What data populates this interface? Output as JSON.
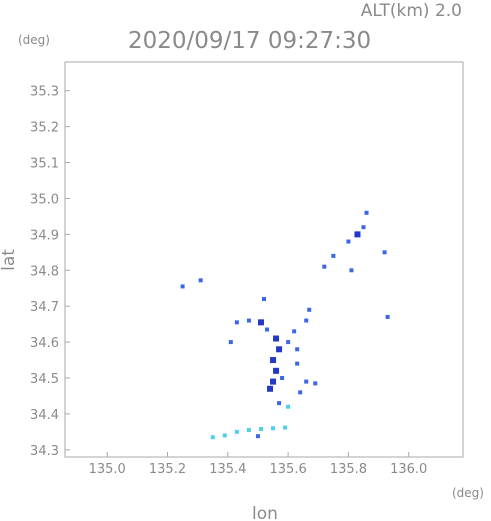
{
  "header": {
    "altitude": "ALT(km) 2.0",
    "timestamp": "2020/09/17 09:27:30"
  },
  "axes": {
    "x_label": "lon",
    "y_label": "lat",
    "x_unit": "(deg)",
    "y_unit": "(deg)",
    "x_range": [
      134.86,
      136.18
    ],
    "y_range": [
      34.28,
      35.38
    ],
    "x_ticks": [
      "135.0",
      "135.2",
      "135.4",
      "135.6",
      "135.8",
      "136.0"
    ],
    "y_ticks": [
      "35.3",
      "35.2",
      "35.1",
      "35.0",
      "34.9",
      "34.8",
      "34.7",
      "34.6",
      "34.5",
      "34.4",
      "34.3"
    ]
  },
  "chart_data": {
    "type": "scatter",
    "xlabel": "lon",
    "ylabel": "lat",
    "xlim": [
      134.86,
      136.18
    ],
    "ylim": [
      34.28,
      35.38
    ],
    "grid": false,
    "colors": {
      "weak": "#4fd0e6",
      "moderate": "#3a66e8",
      "strong": "#2438c8"
    },
    "echoes": [
      {
        "lon": 135.25,
        "lat": 34.755,
        "level": "moderate"
      },
      {
        "lon": 135.31,
        "lat": 34.772,
        "level": "moderate"
      },
      {
        "lon": 135.43,
        "lat": 34.655,
        "level": "moderate"
      },
      {
        "lon": 135.47,
        "lat": 34.66,
        "level": "moderate"
      },
      {
        "lon": 135.51,
        "lat": 34.655,
        "level": "strong"
      },
      {
        "lon": 135.53,
        "lat": 34.635,
        "level": "moderate"
      },
      {
        "lon": 135.56,
        "lat": 34.61,
        "level": "strong"
      },
      {
        "lon": 135.57,
        "lat": 34.58,
        "level": "strong"
      },
      {
        "lon": 135.55,
        "lat": 34.55,
        "level": "strong"
      },
      {
        "lon": 135.56,
        "lat": 34.52,
        "level": "strong"
      },
      {
        "lon": 135.55,
        "lat": 34.49,
        "level": "strong"
      },
      {
        "lon": 135.58,
        "lat": 34.5,
        "level": "moderate"
      },
      {
        "lon": 135.54,
        "lat": 34.47,
        "level": "strong"
      },
      {
        "lon": 135.6,
        "lat": 34.6,
        "level": "moderate"
      },
      {
        "lon": 135.62,
        "lat": 34.63,
        "level": "moderate"
      },
      {
        "lon": 135.63,
        "lat": 34.58,
        "level": "moderate"
      },
      {
        "lon": 135.66,
        "lat": 34.66,
        "level": "moderate"
      },
      {
        "lon": 135.67,
        "lat": 34.69,
        "level": "moderate"
      },
      {
        "lon": 135.63,
        "lat": 34.54,
        "level": "moderate"
      },
      {
        "lon": 135.66,
        "lat": 34.49,
        "level": "moderate"
      },
      {
        "lon": 135.69,
        "lat": 34.485,
        "level": "moderate"
      },
      {
        "lon": 135.64,
        "lat": 34.46,
        "level": "moderate"
      },
      {
        "lon": 135.57,
        "lat": 34.43,
        "level": "moderate"
      },
      {
        "lon": 135.6,
        "lat": 34.42,
        "level": "weak"
      },
      {
        "lon": 135.41,
        "lat": 34.6,
        "level": "moderate"
      },
      {
        "lon": 135.52,
        "lat": 34.72,
        "level": "moderate"
      },
      {
        "lon": 135.72,
        "lat": 34.81,
        "level": "moderate"
      },
      {
        "lon": 135.75,
        "lat": 34.84,
        "level": "moderate"
      },
      {
        "lon": 135.8,
        "lat": 34.88,
        "level": "moderate"
      },
      {
        "lon": 135.83,
        "lat": 34.9,
        "level": "strong"
      },
      {
        "lon": 135.85,
        "lat": 34.92,
        "level": "moderate"
      },
      {
        "lon": 135.86,
        "lat": 34.96,
        "level": "moderate"
      },
      {
        "lon": 135.92,
        "lat": 34.85,
        "level": "moderate"
      },
      {
        "lon": 135.81,
        "lat": 34.8,
        "level": "moderate"
      },
      {
        "lon": 135.93,
        "lat": 34.67,
        "level": "moderate"
      },
      {
        "lon": 135.35,
        "lat": 34.335,
        "level": "weak"
      },
      {
        "lon": 135.39,
        "lat": 34.34,
        "level": "weak"
      },
      {
        "lon": 135.43,
        "lat": 34.35,
        "level": "weak"
      },
      {
        "lon": 135.47,
        "lat": 34.355,
        "level": "weak"
      },
      {
        "lon": 135.51,
        "lat": 34.358,
        "level": "weak"
      },
      {
        "lon": 135.55,
        "lat": 34.36,
        "level": "weak"
      },
      {
        "lon": 135.59,
        "lat": 34.362,
        "level": "weak"
      },
      {
        "lon": 135.5,
        "lat": 34.338,
        "level": "moderate"
      }
    ]
  }
}
